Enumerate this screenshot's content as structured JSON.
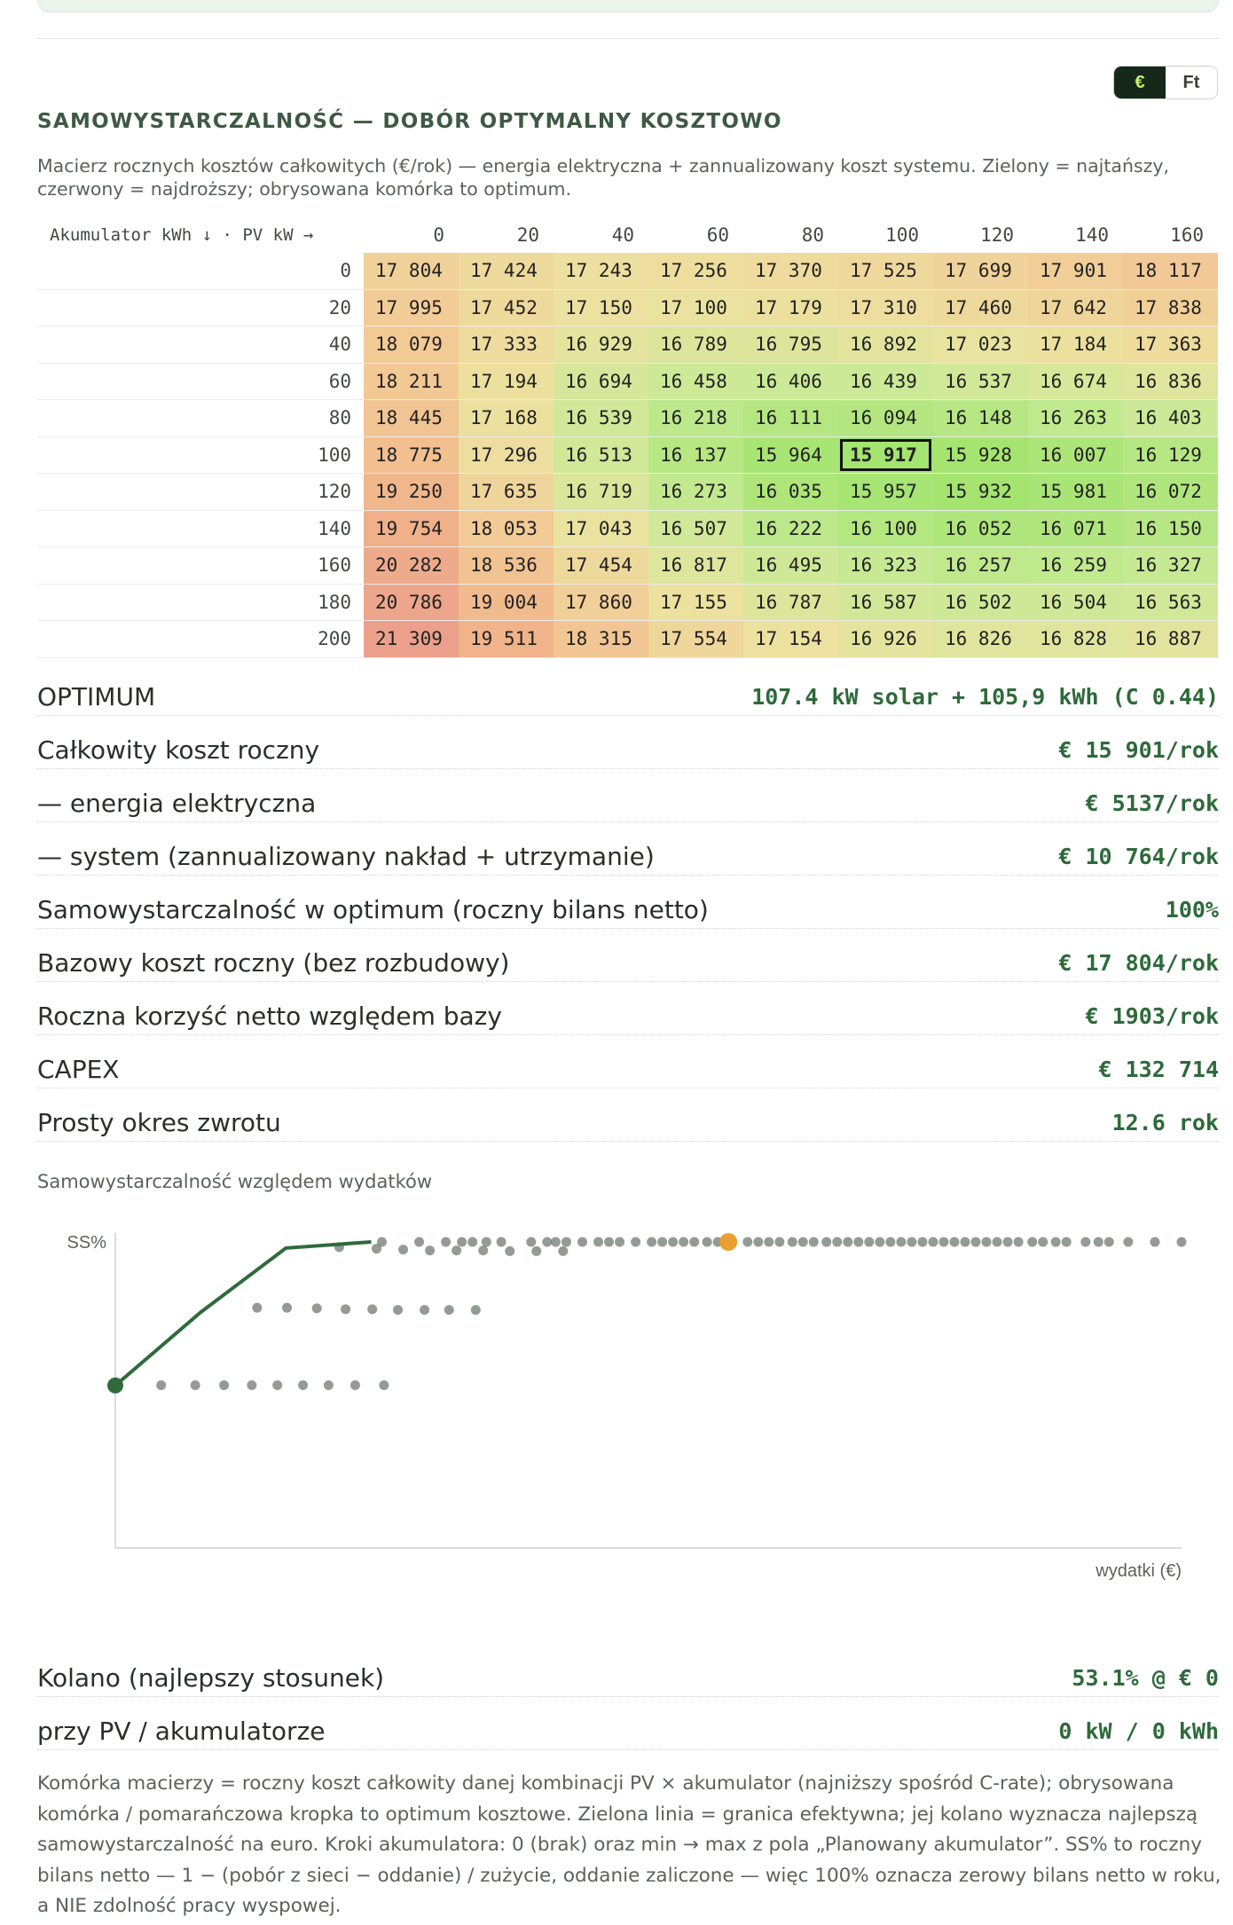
{
  "currency_toggle": {
    "options": [
      "€",
      "Ft"
    ],
    "active": "€"
  },
  "section_title": "SAMOWYSTARCZALNOŚĆ — DOBÓR OPTYMALNY KOSZTOWO",
  "description": "Macierz rocznych kosztów całkowitych (€/rok) — energia elektryczna + zannualizowany koszt systemu. Zielony = najtańszy, czerwony = najdroższy; obrysowana komórka to optimum.",
  "matrix": {
    "corner_label": "Akumulator kWh ↓ · PV kW →",
    "pv_headers": [
      "0",
      "20",
      "40",
      "60",
      "80",
      "100",
      "120",
      "140",
      "160"
    ],
    "optimum": {
      "row": 5,
      "col": 5
    },
    "rows": [
      {
        "battery": "0",
        "values": [
          17804,
          17424,
          17243,
          17256,
          17370,
          17525,
          17699,
          17901,
          18117
        ]
      },
      {
        "battery": "20",
        "values": [
          17995,
          17452,
          17150,
          17100,
          17179,
          17310,
          17460,
          17642,
          17838
        ]
      },
      {
        "battery": "40",
        "values": [
          18079,
          17333,
          16929,
          16789,
          16795,
          16892,
          17023,
          17184,
          17363
        ]
      },
      {
        "battery": "60",
        "values": [
          18211,
          17194,
          16694,
          16458,
          16406,
          16439,
          16537,
          16674,
          16836
        ]
      },
      {
        "battery": "80",
        "values": [
          18445,
          17168,
          16539,
          16218,
          16111,
          16094,
          16148,
          16263,
          16403
        ]
      },
      {
        "battery": "100",
        "values": [
          18775,
          17296,
          16513,
          16137,
          15964,
          15917,
          15928,
          16007,
          16129
        ]
      },
      {
        "battery": "120",
        "values": [
          19250,
          17635,
          16719,
          16273,
          16035,
          15957,
          15932,
          15981,
          16072
        ]
      },
      {
        "battery": "140",
        "values": [
          19754,
          18053,
          17043,
          16507,
          16222,
          16100,
          16052,
          16071,
          16150
        ]
      },
      {
        "battery": "160",
        "values": [
          20282,
          18536,
          17454,
          16817,
          16495,
          16323,
          16257,
          16259,
          16327
        ]
      },
      {
        "battery": "180",
        "values": [
          20786,
          19004,
          17860,
          17155,
          16787,
          16587,
          16502,
          16504,
          16563
        ]
      },
      {
        "battery": "200",
        "values": [
          21309,
          19511,
          18315,
          17554,
          17154,
          16926,
          16826,
          16828,
          16887
        ]
      }
    ]
  },
  "summary": [
    {
      "label": "OPTIMUM",
      "value": "107.4 kW solar + 105,9 kWh (C 0.44)"
    },
    {
      "label": "Całkowity koszt roczny",
      "value": "€ 15 901/rok"
    },
    {
      "label": "— energia elektryczna",
      "value": "€ 5137/rok"
    },
    {
      "label": "— system (zannualizowany nakład + utrzymanie)",
      "value": "€ 10 764/rok"
    },
    {
      "label": "Samowystarczalność w optimum (roczny bilans netto)",
      "value": "100%"
    },
    {
      "label": "Bazowy koszt roczny (bez rozbudowy)",
      "value": "€ 17 804/rok"
    },
    {
      "label": "Roczna korzyść netto względem bazy",
      "value": "€ 1903/rok"
    },
    {
      "label": "CAPEX",
      "value": "€ 132 714"
    },
    {
      "label": "Prosty okres zwrotu",
      "value": "12.6 rok"
    }
  ],
  "chart_title": "Samowystarczalność względem wydatków",
  "chart_data": {
    "type": "scatter",
    "ylabel": "SS%",
    "xlabel": "wydatki (€)",
    "colors": {
      "frontier": "#2f6a3c",
      "optimum": "#e8a030",
      "points": "#6f7a70"
    },
    "frontier": [
      {
        "x": 0,
        "y": 53.1
      },
      {
        "x": 8,
        "y": 77
      },
      {
        "x": 16,
        "y": 98
      },
      {
        "x": 24,
        "y": 100
      }
    ],
    "optimum": {
      "x": 57.5,
      "y": 100
    },
    "points": [
      {
        "x": 4.3,
        "y": 53.2
      },
      {
        "x": 7.5,
        "y": 53.2
      },
      {
        "x": 10.2,
        "y": 53.2
      },
      {
        "x": 12.8,
        "y": 53.2
      },
      {
        "x": 15.2,
        "y": 53.2
      },
      {
        "x": 17.6,
        "y": 53.2
      },
      {
        "x": 20,
        "y": 53.2
      },
      {
        "x": 22.5,
        "y": 53.2
      },
      {
        "x": 25.2,
        "y": 53.2
      },
      {
        "x": 13.3,
        "y": 78.5
      },
      {
        "x": 16.1,
        "y": 78.5
      },
      {
        "x": 18.9,
        "y": 78.3
      },
      {
        "x": 21.6,
        "y": 78
      },
      {
        "x": 24.1,
        "y": 78
      },
      {
        "x": 26.5,
        "y": 77.8
      },
      {
        "x": 29,
        "y": 77.8
      },
      {
        "x": 31.3,
        "y": 77.8
      },
      {
        "x": 33.8,
        "y": 77.8
      },
      {
        "x": 21,
        "y": 98.3
      },
      {
        "x": 24.5,
        "y": 97.8
      },
      {
        "x": 27,
        "y": 97.5
      },
      {
        "x": 29.5,
        "y": 97.2
      },
      {
        "x": 32,
        "y": 97.2
      },
      {
        "x": 34.5,
        "y": 97.2
      },
      {
        "x": 37,
        "y": 97
      },
      {
        "x": 39.5,
        "y": 97
      },
      {
        "x": 42,
        "y": 97
      },
      {
        "x": 25,
        "y": 100
      },
      {
        "x": 28.5,
        "y": 100
      },
      {
        "x": 31,
        "y": 100
      },
      {
        "x": 32.5,
        "y": 100
      },
      {
        "x": 33.5,
        "y": 100
      },
      {
        "x": 34.8,
        "y": 100
      },
      {
        "x": 36.2,
        "y": 100
      },
      {
        "x": 39,
        "y": 100
      },
      {
        "x": 40.5,
        "y": 100
      },
      {
        "x": 41.3,
        "y": 100
      },
      {
        "x": 42.3,
        "y": 100
      },
      {
        "x": 43.8,
        "y": 100
      },
      {
        "x": 45.3,
        "y": 100
      },
      {
        "x": 46.3,
        "y": 100
      },
      {
        "x": 47.3,
        "y": 100
      },
      {
        "x": 48.8,
        "y": 100
      },
      {
        "x": 50.3,
        "y": 100
      },
      {
        "x": 51.3,
        "y": 100
      },
      {
        "x": 52.3,
        "y": 100
      },
      {
        "x": 53.3,
        "y": 100
      },
      {
        "x": 54.3,
        "y": 100
      },
      {
        "x": 55.5,
        "y": 100
      },
      {
        "x": 56.5,
        "y": 100
      },
      {
        "x": 59.3,
        "y": 100
      },
      {
        "x": 60.3,
        "y": 100
      },
      {
        "x": 61.3,
        "y": 100
      },
      {
        "x": 62.3,
        "y": 100
      },
      {
        "x": 63.5,
        "y": 100
      },
      {
        "x": 64.5,
        "y": 100
      },
      {
        "x": 65.5,
        "y": 100
      },
      {
        "x": 66.7,
        "y": 100
      },
      {
        "x": 67.7,
        "y": 100
      },
      {
        "x": 68.7,
        "y": 100
      },
      {
        "x": 69.7,
        "y": 100
      },
      {
        "x": 70.7,
        "y": 100
      },
      {
        "x": 71.7,
        "y": 100
      },
      {
        "x": 72.7,
        "y": 100
      },
      {
        "x": 73.7,
        "y": 100
      },
      {
        "x": 74.7,
        "y": 100
      },
      {
        "x": 75.7,
        "y": 100
      },
      {
        "x": 76.7,
        "y": 100
      },
      {
        "x": 77.7,
        "y": 100
      },
      {
        "x": 78.7,
        "y": 100
      },
      {
        "x": 79.7,
        "y": 100
      },
      {
        "x": 80.7,
        "y": 100
      },
      {
        "x": 81.7,
        "y": 100
      },
      {
        "x": 82.7,
        "y": 100
      },
      {
        "x": 83.7,
        "y": 100
      },
      {
        "x": 84.7,
        "y": 100
      },
      {
        "x": 86,
        "y": 100
      },
      {
        "x": 87,
        "y": 100
      },
      {
        "x": 88.2,
        "y": 100
      },
      {
        "x": 89.2,
        "y": 100
      },
      {
        "x": 91,
        "y": 100
      },
      {
        "x": 92.2,
        "y": 100
      },
      {
        "x": 93.2,
        "y": 100
      },
      {
        "x": 95,
        "y": 100
      },
      {
        "x": 97.5,
        "y": 100
      },
      {
        "x": 100,
        "y": 100
      }
    ]
  },
  "knee": [
    {
      "label": "Kolano (najlepszy stosunek)",
      "value": "53.1% @ € 0"
    },
    {
      "label": "przy PV / akumulatorze",
      "value": "0 kW / 0 kWh"
    }
  ],
  "footnote": "Komórka macierzy = roczny koszt całkowity danej kombinacji PV × akumulator (najniższy spośród C-rate); obrysowana komórka / pomarańczowa kropka to optimum kosztowe. Zielona linia = granica efektywna; jej kolano wyznacza najlepszą samowystarczalność na euro. Kroki akumulatora: 0 (brak) oraz min → max z pola „Planowany akumulator”. SS% to roczny bilans netto — 1 − (pobór z sieci − oddanie) / zużycie, oddanie zaliczone — więc 100% oznacza zerowy bilans netto w roku, a NIE zdolność pracy wyspowej."
}
